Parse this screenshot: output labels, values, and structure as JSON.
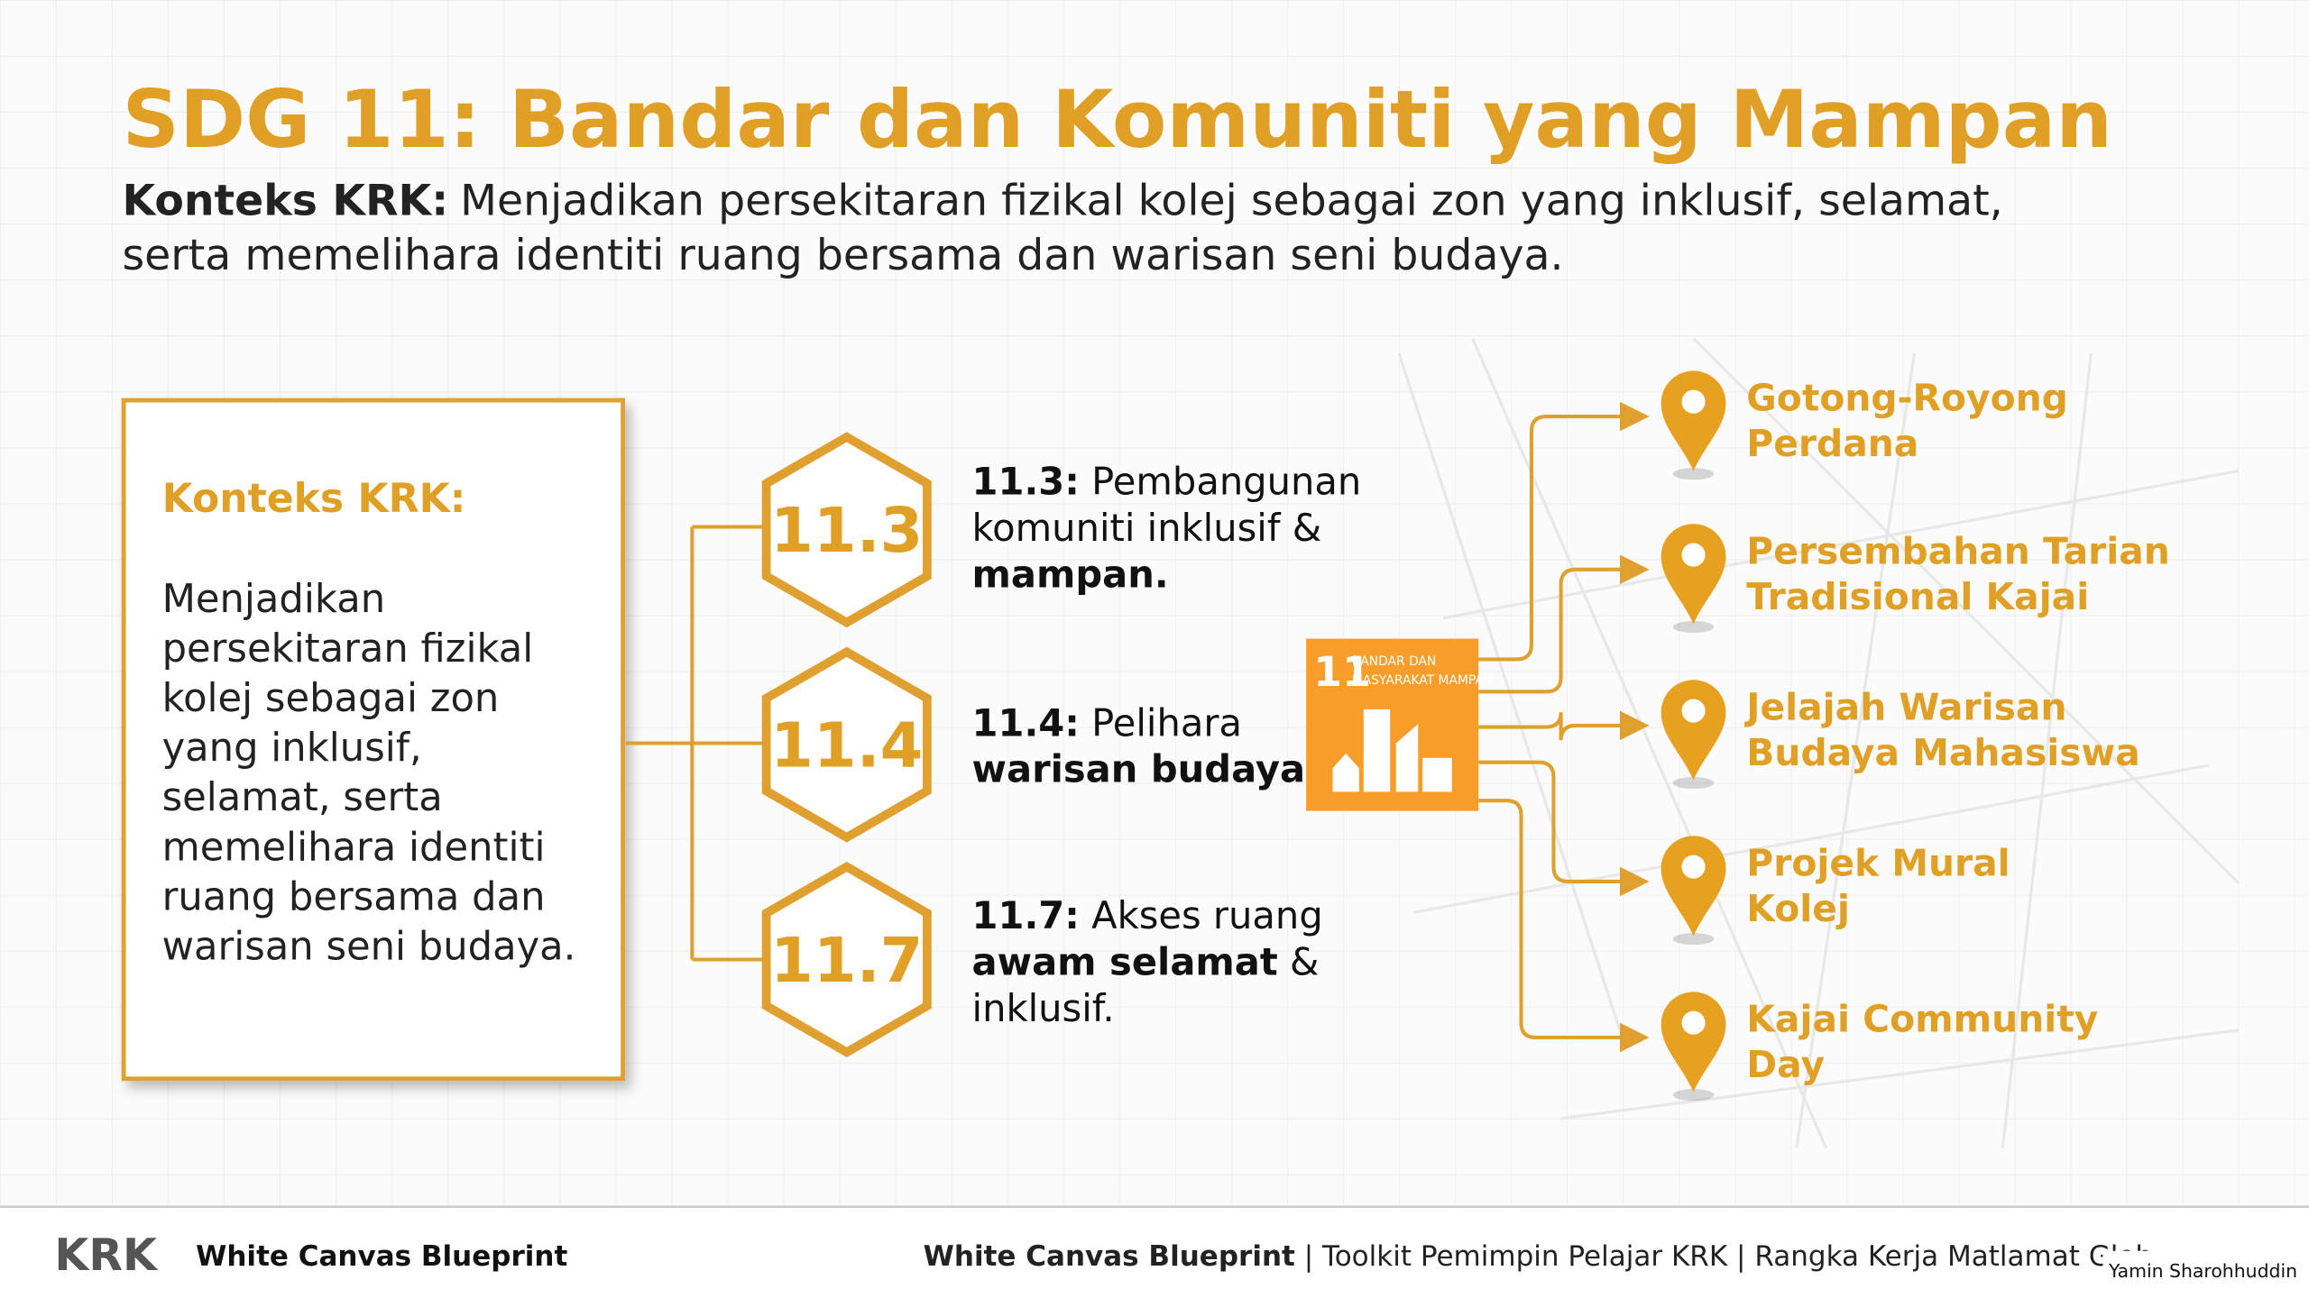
{
  "header": {
    "title": "SDG 11: Bandar dan Komuniti yang Mampan",
    "context_label": "Konteks KRK:",
    "context_lines": [
      "Menjadikan persekitaran fizikal kolej sebagai zon yang inklusif, selamat,",
      "serta memelihara identiti ruang bersama dan warisan seni budaya."
    ]
  },
  "context_box": {
    "title": "Konteks KRK:",
    "lines": [
      "Menjadikan",
      "persekitaran fizikal",
      "kolej sebagai zon",
      "yang inklusif,",
      "selamat, serta",
      "memelihara identiti",
      "ruang bersama dan",
      "warisan seni budaya."
    ]
  },
  "targets": [
    {
      "code": "11.3",
      "lines": [
        [
          {
            "text": "11.3:",
            "bold": true
          },
          {
            "text": " Pembangunan",
            "bold": false
          }
        ],
        [
          {
            "text": "komuniti inklusif &",
            "bold": false
          }
        ],
        [
          {
            "text": "mampan.",
            "bold": true
          }
        ]
      ]
    },
    {
      "code": "11.4",
      "lines": [
        [
          {
            "text": "11.4:",
            "bold": true
          },
          {
            "text": " Pelihara",
            "bold": false
          }
        ],
        [
          {
            "text": "warisan budaya.",
            "bold": true
          }
        ]
      ]
    },
    {
      "code": "11.7",
      "lines": [
        [
          {
            "text": "11.7:",
            "bold": true
          },
          {
            "text": " Akses ruang",
            "bold": false
          }
        ],
        [
          {
            "text": "awam selamat",
            "bold": true
          },
          {
            "text": " &",
            "bold": false
          }
        ],
        [
          {
            "text": "inklusif.",
            "bold": false
          }
        ]
      ]
    }
  ],
  "sdg_icon": {
    "number": "11",
    "label_lines": [
      "BANDAR DAN",
      "MASYARAKAT MAMPAN"
    ]
  },
  "programs": [
    {
      "lines": [
        "Gotong-Royong",
        "Perdana"
      ]
    },
    {
      "lines": [
        "Persembahan Tarian",
        "Tradisional Kajai"
      ]
    },
    {
      "lines": [
        "Jelajah Warisan",
        "Budaya Mahasiswa"
      ]
    },
    {
      "lines": [
        "Projek Mural",
        "Kolej"
      ]
    },
    {
      "lines": [
        "Kajai Community",
        "Day"
      ]
    }
  ],
  "footer": {
    "logo": "KRK",
    "brand": "White Canvas Blueprint",
    "right_bold": "White Canvas Blueprint",
    "right_text": " | Toolkit Pemimpin Pelajar KRK | Rangka Kerja Matlamat Glob",
    "author": "Yamin Sharohhuddin"
  }
}
